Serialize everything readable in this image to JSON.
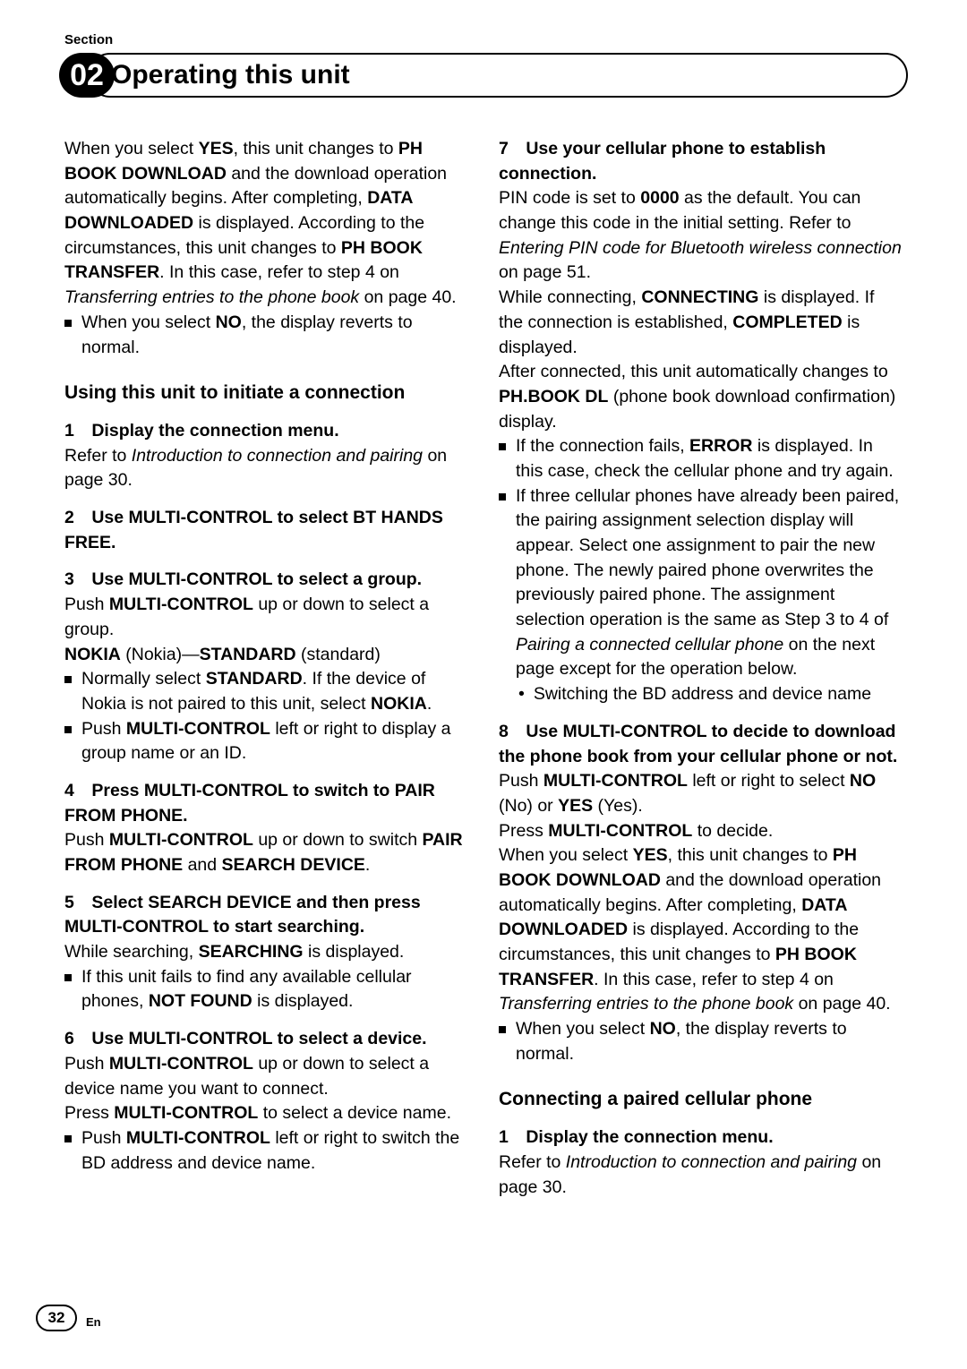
{
  "section_label": "Section",
  "section_number": "02",
  "chapter_title": "Operating this unit",
  "page_number": "32",
  "lang": "En",
  "left": {
    "intro_html": "When you select <b>YES</b>, this unit changes to <b>PH BOOK DOWNLOAD</b> and the download operation automatically begins. After completing, <b>DATA DOWNLOADED</b> is displayed. According to the circumstances, this unit changes to <b>PH BOOK TRANSFER</b>. In this case, refer to step 4 on <i>Transferring entries to the phone book</i> on page 40.",
    "intro_bullet_html": "When you select <b>NO</b>, the display reverts to normal.",
    "subhead": "Using this unit to initiate a connection",
    "step1_head": "1 Display the connection menu.",
    "step1_body_html": "Refer to <i>Introduction to connection and pairing</i> on page 30.",
    "step2_head_html": "2 Use MULTI-CONTROL to select BT HANDS FREE.",
    "step3_head": "3 Use MULTI-CONTROL to select a group.",
    "step3_body1_html": "Push <b>MULTI-CONTROL</b> up or down to select a group.",
    "step3_body2_html": "<b>NOKIA</b> (Nokia)—<b>STANDARD</b> (standard)",
    "step3_bullet1_html": "Normally select <b>STANDARD</b>. If the device of Nokia is not paired to this unit, select <b>NOKIA</b>.",
    "step3_bullet2_html": "Push <b>MULTI-CONTROL</b> left or right to display a group name or an ID.",
    "step4_head_html": "4 Press MULTI-CONTROL to switch to PAIR FROM PHONE.",
    "step4_body_html": "Push <b>MULTI-CONTROL</b> up or down to switch <b>PAIR FROM PHONE</b> and <b>SEARCH DEVICE</b>.",
    "step5_head_html": "5 Select SEARCH DEVICE and then press MULTI-CONTROL to start searching.",
    "step5_body_html": "While searching, <b>SEARCHING</b> is displayed.",
    "step5_bullet_html": "If this unit fails to find any available cellular phones, <b>NOT FOUND</b> is displayed.",
    "step6_head": "6 Use MULTI-CONTROL to select a device.",
    "step6_body1_html": "Push <b>MULTI-CONTROL</b> up or down to select a device name you want to connect.",
    "step6_body2_html": "Press <b>MULTI-CONTROL</b> to select a device name.",
    "step6_bullet_html": "Push <b>MULTI-CONTROL</b> left or right to switch the BD address and device name."
  },
  "right": {
    "step7_head_html": "7 Use your cellular phone to establish connection.",
    "step7_body1_html": "PIN code is set to <b>0000</b> as the default. You can change this code in the initial setting. Refer to <i>Entering PIN code for Bluetooth wireless connection</i> on page 51.",
    "step7_body2_html": "While connecting, <b>CONNECTING</b> is displayed. If the connection is established, <b>COMPLETED</b> is displayed.",
    "step7_body3_html": "After connected, this unit automatically changes to <b>PH.BOOK DL</b> (phone book download confirmation) display.",
    "step7_bullet1_html": "If the connection fails, <b>ERROR</b> is displayed. In this case, check the cellular phone and try again.",
    "step7_bullet2_html": "If three cellular phones have already been paired, the pairing assignment selection display will appear. Select one assignment to pair the new phone. The newly paired phone overwrites the previously paired phone. The assignment selection operation is the same as Step 3 to 4 of <i>Pairing a connected cellular phone</i> on the next page except for the operation below.",
    "step7_subbullet": "Switching the BD address and device name",
    "step8_head_html": "8 Use MULTI-CONTROL to decide to download the phone book from your cellular phone or not.",
    "step8_body1_html": "Push <b>MULTI-CONTROL</b> left or right to select <b>NO</b> (No) or <b>YES</b> (Yes).",
    "step8_body2_html": "Press <b>MULTI-CONTROL</b> to decide.",
    "step8_body3_html": "When you select <b>YES</b>, this unit changes to <b>PH BOOK DOWNLOAD</b> and the download operation automatically begins. After completing, <b>DATA DOWNLOADED</b> is displayed. According to the circumstances, this unit changes to <b>PH BOOK TRANSFER</b>. In this case, refer to step 4 on <i>Transferring entries to the phone book</i> on page 40.",
    "step8_bullet_html": "When you select <b>NO</b>, the display reverts to normal.",
    "subhead2": "Connecting a paired cellular phone",
    "sub2_step1_head": "1 Display the connection menu.",
    "sub2_step1_body_html": "Refer to <i>Introduction to connection and pairing</i> on page 30."
  }
}
